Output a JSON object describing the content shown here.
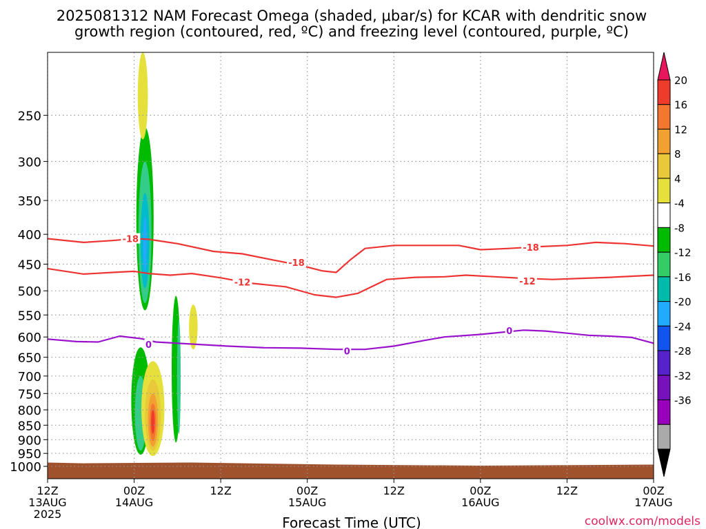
{
  "title_line1": "2025081312 NAM Forecast Omega (shaded, μbar/s) for KCAR with dendritic snow",
  "title_line2": "growth region (contoured, red, ºC) and freezing level (contoured, purple, ºC)",
  "xlabel": "Forecast Time (UTC)",
  "credit": "coolwx.com/models",
  "colors": {
    "grid": "#999999",
    "ground": "#a0522d",
    "dgz": "#ee3333",
    "freezing": "#9911cc"
  },
  "chart_data": {
    "type": "heatmap",
    "title": "2025081312 NAM Forecast Omega (shaded, μbar/s) for KCAR with dendritic snow growth region (contoured, red, ºC) and freezing level (contoured, purple, ºC)",
    "xlabel": "Forecast Time (UTC)",
    "ylabel": "",
    "x_range_hours": [
      0,
      84
    ],
    "y_scale": "log (pressure, hPa)",
    "y_range": [
      1050,
      195
    ],
    "x_ticks": [
      {
        "h": 0,
        "line1": "12Z",
        "line2": "13AUG",
        "line3": "2025"
      },
      {
        "h": 12,
        "line1": "00Z",
        "line2": "14AUG",
        "line3": ""
      },
      {
        "h": 24,
        "line1": "12Z",
        "line2": "",
        "line3": ""
      },
      {
        "h": 36,
        "line1": "00Z",
        "line2": "15AUG",
        "line3": ""
      },
      {
        "h": 48,
        "line1": "12Z",
        "line2": "",
        "line3": ""
      },
      {
        "h": 60,
        "line1": "00Z",
        "line2": "16AUG",
        "line3": ""
      },
      {
        "h": 72,
        "line1": "12Z",
        "line2": "",
        "line3": ""
      },
      {
        "h": 84,
        "line1": "00Z",
        "line2": "17AUG",
        "line3": ""
      }
    ],
    "y_ticks": [
      250,
      300,
      350,
      400,
      450,
      500,
      550,
      600,
      650,
      700,
      750,
      800,
      850,
      900,
      950,
      1000
    ],
    "grid": true,
    "colorbar": {
      "labels": [
        "20",
        "16",
        "12",
        "8",
        "4",
        "-4",
        "-8",
        "-12",
        "-16",
        "-20",
        "-24",
        "-28",
        "-32",
        "-36"
      ],
      "colors": [
        "#e8175d",
        "#ef3b2c",
        "#f4772f",
        "#f3a033",
        "#e9c939",
        "#e6e03c",
        "#ffffff",
        "#00bb00",
        "#33cc66",
        "#00bbaa",
        "#22aaff",
        "#1155ee",
        "#5522cc",
        "#7711bb",
        "#9900bb",
        "#aaaaaa",
        "#000000"
      ]
    },
    "contours": [
      {
        "name": "-18",
        "color": "dgz",
        "points": [
          [
            0,
            407
          ],
          [
            5,
            413
          ],
          [
            9,
            410
          ],
          [
            12,
            407
          ],
          [
            14,
            408
          ],
          [
            18,
            415
          ],
          [
            23,
            428
          ],
          [
            27,
            432
          ],
          [
            31,
            442
          ],
          [
            35,
            452
          ],
          [
            38,
            462
          ],
          [
            40,
            465
          ],
          [
            42,
            442
          ],
          [
            44,
            423
          ],
          [
            48,
            418
          ],
          [
            52,
            418
          ],
          [
            57,
            418
          ],
          [
            60,
            425
          ],
          [
            64,
            423
          ],
          [
            68,
            420
          ],
          [
            72,
            418
          ],
          [
            76,
            413
          ],
          [
            80,
            415
          ],
          [
            84,
            419
          ]
        ],
        "labels": [
          {
            "h": 11.5,
            "p": 407,
            "text": "-18"
          },
          {
            "h": 34.5,
            "p": 447,
            "text": "-18"
          },
          {
            "h": 67,
            "p": 421,
            "text": "-18"
          }
        ]
      },
      {
        "name": "-12",
        "color": "dgz",
        "points": [
          [
            0,
            458
          ],
          [
            5,
            468
          ],
          [
            9,
            465
          ],
          [
            12,
            463
          ],
          [
            14,
            467
          ],
          [
            17,
            470
          ],
          [
            20,
            467
          ],
          [
            24,
            475
          ],
          [
            28,
            485
          ],
          [
            33,
            492
          ],
          [
            37,
            508
          ],
          [
            40,
            513
          ],
          [
            43,
            505
          ],
          [
            47,
            478
          ],
          [
            51,
            474
          ],
          [
            55,
            473
          ],
          [
            58,
            470
          ],
          [
            62,
            473
          ],
          [
            66,
            476
          ],
          [
            70,
            478
          ],
          [
            74,
            476
          ],
          [
            78,
            474
          ],
          [
            84,
            470
          ]
        ],
        "labels": [
          {
            "h": 27,
            "p": 483,
            "text": "-12"
          },
          {
            "h": 66.5,
            "p": 481,
            "text": "-12"
          }
        ]
      },
      {
        "name": "0",
        "color": "freezing",
        "points": [
          [
            0,
            605
          ],
          [
            4,
            611
          ],
          [
            7,
            612
          ],
          [
            10,
            598
          ],
          [
            13,
            604
          ],
          [
            15,
            612
          ],
          [
            20,
            617
          ],
          [
            25,
            622
          ],
          [
            30,
            626
          ],
          [
            35,
            627
          ],
          [
            40,
            630
          ],
          [
            44,
            630
          ],
          [
            48,
            622
          ],
          [
            52,
            609
          ],
          [
            55,
            600
          ],
          [
            60,
            594
          ],
          [
            63,
            589
          ],
          [
            66,
            584
          ],
          [
            69,
            586
          ],
          [
            72,
            591
          ],
          [
            75,
            596
          ],
          [
            78,
            598
          ],
          [
            81,
            601
          ],
          [
            84,
            615
          ]
        ],
        "labels": [
          {
            "h": 14,
            "p": 618,
            "text": "0"
          },
          {
            "h": 41.5,
            "p": 634,
            "text": "0"
          },
          {
            "h": 64,
            "p": 585,
            "text": "0"
          }
        ]
      }
    ],
    "omega_features": [
      {
        "h": 13.5,
        "p_top": 262,
        "p_bot": 540,
        "half_width_h": 1.2,
        "value": -8
      },
      {
        "h": 13.5,
        "p_top": 300,
        "p_bot": 525,
        "half_width_h": 0.9,
        "value": -12
      },
      {
        "h": 13.5,
        "p_top": 340,
        "p_bot": 495,
        "half_width_h": 0.6,
        "value": -16
      },
      {
        "h": 13.5,
        "p_top": 372,
        "p_bot": 465,
        "half_width_h": 0.25,
        "value": -20
      },
      {
        "h": 13.2,
        "p_top": 195,
        "p_bot": 275,
        "half_width_h": 0.7,
        "value": 4
      },
      {
        "h": 17.8,
        "p_top": 510,
        "p_bot": 910,
        "half_width_h": 0.6,
        "value": -8
      },
      {
        "h": 18.2,
        "p_top": 560,
        "p_bot": 880,
        "half_width_h": 0.25,
        "value": -12
      },
      {
        "h": 20.2,
        "p_top": 528,
        "p_bot": 630,
        "half_width_h": 0.6,
        "value": 4
      },
      {
        "h": 12.9,
        "p_top": 625,
        "p_bot": 955,
        "half_width_h": 1.3,
        "value": -8
      },
      {
        "h": 12.9,
        "p_top": 700,
        "p_bot": 940,
        "half_width_h": 0.8,
        "value": -12
      },
      {
        "h": 14.6,
        "p_top": 660,
        "p_bot": 960,
        "half_width_h": 1.6,
        "value": 4
      },
      {
        "h": 14.6,
        "p_top": 710,
        "p_bot": 940,
        "half_width_h": 1.1,
        "value": 8
      },
      {
        "h": 14.6,
        "p_top": 750,
        "p_bot": 925,
        "half_width_h": 0.7,
        "value": 12
      },
      {
        "h": 14.6,
        "p_top": 780,
        "p_bot": 905,
        "half_width_h": 0.45,
        "value": 16
      },
      {
        "h": 14.6,
        "p_top": 800,
        "p_bot": 880,
        "half_width_h": 0.25,
        "value": 20
      }
    ],
    "ground_pressure": [
      [
        0,
        985
      ],
      [
        5,
        988
      ],
      [
        20,
        985
      ],
      [
        40,
        993
      ],
      [
        60,
        997
      ],
      [
        84,
        993
      ]
    ]
  }
}
